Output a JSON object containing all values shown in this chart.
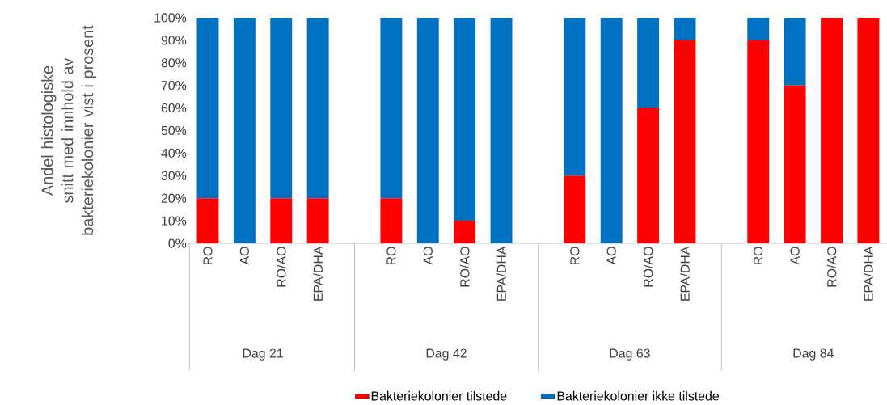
{
  "chart_data": {
    "type": "bar",
    "stacked": true,
    "ylabel": "Andel histologiske snitt med innhold av bakteriekolonier vist i prosent",
    "categories": [
      "RO",
      "AO",
      "RO/AO",
      "EPA/DHA",
      null,
      "RO",
      "AO",
      "RO/AO",
      "EPA/DHA",
      null,
      "RO",
      "AO",
      "RO/AO",
      "EPA/DHA",
      null,
      "RO",
      "AO",
      "RO/AO",
      "EPA/DHA"
    ],
    "series": [
      {
        "name": "Bakteriekolonier tilstede",
        "color": "#ff0000",
        "values": [
          20,
          0,
          20,
          20,
          null,
          20,
          0,
          10,
          0,
          null,
          30,
          0,
          60,
          90,
          null,
          90,
          70,
          100,
          100
        ]
      },
      {
        "name": "Bakteriekolonier ikke tilstede",
        "color": "#0070c0",
        "values": [
          80,
          100,
          80,
          80,
          null,
          80,
          100,
          90,
          100,
          null,
          70,
          100,
          40,
          10,
          null,
          10,
          30,
          0,
          0
        ]
      }
    ],
    "ylim": [
      0,
      100
    ],
    "yticks": [
      {
        "value": 0,
        "label": "0%"
      },
      {
        "value": 10,
        "label": "10%"
      },
      {
        "value": 20,
        "label": "20%"
      },
      {
        "value": 30,
        "label": "30%"
      },
      {
        "value": 40,
        "label": "40%"
      },
      {
        "value": 50,
        "label": "50%"
      },
      {
        "value": 60,
        "label": "60%"
      },
      {
        "value": 70,
        "label": "70%"
      },
      {
        "value": 80,
        "label": "80%"
      },
      {
        "value": 90,
        "label": "90%"
      },
      {
        "value": 100,
        "label": "100%"
      }
    ],
    "annotations": [
      "Dag 21",
      "Dag 42",
      "Dag 63",
      "Dag 84"
    ],
    "grid": false,
    "legend": "bottom"
  }
}
